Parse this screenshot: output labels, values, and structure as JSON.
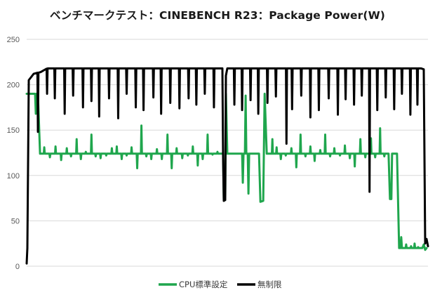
{
  "chart_data": {
    "type": "line",
    "title": "ベンチマークテスト：CINEBENCH R23：Package Power(W)",
    "xlabel": "",
    "ylabel": "",
    "ylim": [
      0,
      250
    ],
    "yticks": [
      0,
      50,
      100,
      150,
      200,
      250
    ],
    "grid": true,
    "legend_position": "bottom",
    "x_samples": 570,
    "series": [
      {
        "name": "CPU標準設定",
        "color": "#1fa64d",
        "points": [
          [
            0,
            190
          ],
          [
            12,
            190
          ],
          [
            13,
            168
          ],
          [
            14,
            190
          ],
          [
            16,
            190
          ],
          [
            19,
            124
          ],
          [
            40,
            124
          ],
          [
            279,
            124
          ],
          [
            280,
            73
          ],
          [
            282,
            73
          ],
          [
            283,
            190
          ],
          [
            285,
            124
          ],
          [
            300,
            124
          ],
          [
            306,
            124
          ],
          [
            307,
            92
          ],
          [
            308,
            124
          ],
          [
            310,
            124
          ],
          [
            311,
            188
          ],
          [
            312,
            124
          ],
          [
            314,
            124
          ],
          [
            315,
            80
          ],
          [
            316,
            124
          ],
          [
            330,
            124
          ],
          [
            332,
            71
          ],
          [
            336,
            72
          ],
          [
            338,
            190
          ],
          [
            341,
            124
          ],
          [
            514,
            124
          ],
          [
            516,
            74
          ],
          [
            518,
            74
          ],
          [
            519,
            124
          ],
          [
            526,
            124
          ],
          [
            529,
            20
          ],
          [
            531,
            20
          ],
          [
            532,
            32
          ],
          [
            533,
            20
          ],
          [
            562,
            20
          ],
          [
            564,
            24
          ],
          [
            566,
            18
          ],
          [
            568,
            20
          ]
        ],
        "spikes": [
          [
            25,
            131
          ],
          [
            33,
            120
          ],
          [
            41,
            132
          ],
          [
            49,
            117
          ],
          [
            57,
            130
          ],
          [
            63,
            121
          ],
          [
            71,
            140
          ],
          [
            77,
            118
          ],
          [
            84,
            126
          ],
          [
            92,
            145
          ],
          [
            98,
            121
          ],
          [
            105,
            119
          ],
          [
            113,
            122
          ],
          [
            121,
            130
          ],
          [
            128,
            132
          ],
          [
            135,
            118
          ],
          [
            142,
            122
          ],
          [
            149,
            131
          ],
          [
            157,
            108
          ],
          [
            163,
            155
          ],
          [
            170,
            121
          ],
          [
            177,
            118
          ],
          [
            185,
            129
          ],
          [
            192,
            118
          ],
          [
            200,
            145
          ],
          [
            206,
            108
          ],
          [
            213,
            130
          ],
          [
            221,
            119
          ],
          [
            229,
            122
          ],
          [
            236,
            132
          ],
          [
            243,
            111
          ],
          [
            250,
            118
          ],
          [
            257,
            145
          ],
          [
            264,
            123
          ],
          [
            271,
            126
          ],
          [
            349,
            140
          ],
          [
            355,
            131
          ],
          [
            361,
            118
          ],
          [
            368,
            122
          ],
          [
            376,
            130
          ],
          [
            383,
            109
          ],
          [
            389,
            145
          ],
          [
            396,
            121
          ],
          [
            403,
            132
          ],
          [
            409,
            116
          ],
          [
            417,
            128
          ],
          [
            424,
            145
          ],
          [
            431,
            121
          ],
          [
            437,
            130
          ],
          [
            445,
            122
          ],
          [
            452,
            133
          ],
          [
            459,
            119
          ],
          [
            466,
            110
          ],
          [
            474,
            140
          ],
          [
            481,
            120
          ],
          [
            489,
            141
          ],
          [
            495,
            120
          ],
          [
            502,
            152
          ],
          [
            508,
            121
          ],
          [
            539,
            24
          ],
          [
            546,
            22
          ],
          [
            551,
            25
          ],
          [
            556,
            21
          ]
        ]
      },
      {
        "name": "無制限",
        "color": "#000000",
        "points": [
          [
            0,
            3
          ],
          [
            1,
            20
          ],
          [
            3,
            205
          ],
          [
            6,
            208
          ],
          [
            10,
            212
          ],
          [
            20,
            214
          ],
          [
            30,
            218
          ],
          [
            45,
            218
          ],
          [
            278,
            218
          ],
          [
            279,
            120
          ],
          [
            280,
            72
          ],
          [
            282,
            73
          ],
          [
            283,
            210
          ],
          [
            285,
            218
          ],
          [
            300,
            218
          ],
          [
            560,
            218
          ],
          [
            564,
            217
          ],
          [
            566,
            25
          ],
          [
            568,
            30
          ],
          [
            570,
            22
          ]
        ],
        "spikes": [
          [
            16,
            148
          ],
          [
            29,
            190
          ],
          [
            40,
            185
          ],
          [
            54,
            168
          ],
          [
            66,
            188
          ],
          [
            80,
            175
          ],
          [
            92,
            182
          ],
          [
            103,
            165
          ],
          [
            117,
            185
          ],
          [
            130,
            163
          ],
          [
            142,
            190
          ],
          [
            155,
            175
          ],
          [
            166,
            172
          ],
          [
            180,
            186
          ],
          [
            191,
            168
          ],
          [
            204,
            180
          ],
          [
            217,
            174
          ],
          [
            230,
            185
          ],
          [
            241,
            178
          ],
          [
            253,
            190
          ],
          [
            266,
            175
          ],
          [
            295,
            178
          ],
          [
            306,
            172
          ],
          [
            318,
            183
          ],
          [
            329,
            168
          ],
          [
            342,
            180
          ],
          [
            354,
            187
          ],
          [
            369,
            135
          ],
          [
            377,
            173
          ],
          [
            390,
            188
          ],
          [
            403,
            164
          ],
          [
            415,
            172
          ],
          [
            429,
            185
          ],
          [
            442,
            167
          ],
          [
            453,
            184
          ],
          [
            465,
            178
          ],
          [
            476,
            188
          ],
          [
            487,
            82
          ],
          [
            498,
            172
          ],
          [
            510,
            186
          ],
          [
            522,
            173
          ],
          [
            533,
            190
          ],
          [
            545,
            167
          ],
          [
            555,
            178
          ]
        ]
      }
    ]
  }
}
